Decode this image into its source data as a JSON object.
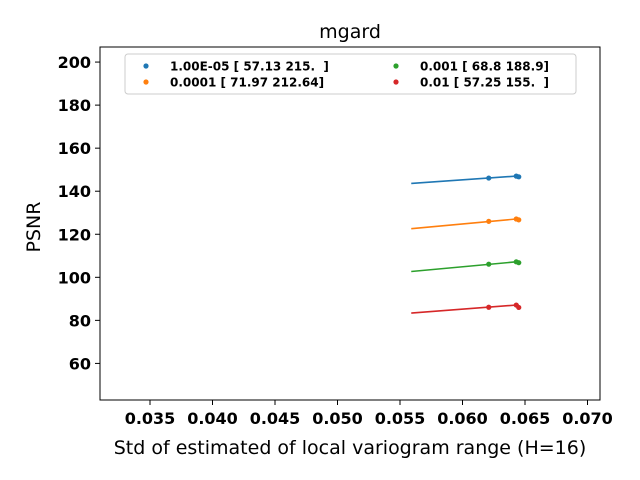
{
  "chart_data": {
    "type": "scatter",
    "title": "mgard",
    "xlabel": "Std of estimated of local variogram range (H=16)",
    "ylabel": "PSNR",
    "xlim": [
      0.031,
      0.071
    ],
    "ylim": [
      43,
      207
    ],
    "xticks": [
      0.035,
      0.04,
      0.045,
      0.05,
      0.055,
      0.06,
      0.065,
      0.07
    ],
    "xtick_labels": [
      "0.035",
      "0.040",
      "0.045",
      "0.050",
      "0.055",
      "0.060",
      "0.065",
      "0.070"
    ],
    "yticks": [
      60,
      80,
      100,
      120,
      140,
      160,
      180,
      200
    ],
    "ytick_labels": [
      "60",
      "80",
      "100",
      "120",
      "140",
      "160",
      "180",
      "200"
    ],
    "grid": false,
    "legend_position": "top",
    "series": [
      {
        "name": "1.00E-05 [ 57.13 215.  ]",
        "color": "#1f77b4",
        "points": [
          {
            "x": 0.0621,
            "y": 146.1
          },
          {
            "x": 0.0643,
            "y": 147.0
          },
          {
            "x": 0.0645,
            "y": 146.7
          }
        ],
        "fit": [
          {
            "x": 0.0559,
            "y": 143.6
          },
          {
            "x": 0.0645,
            "y": 147.1
          }
        ]
      },
      {
        "name": "0.0001 [ 71.97 212.64]",
        "color": "#ff7f0e",
        "points": [
          {
            "x": 0.0621,
            "y": 126.0
          },
          {
            "x": 0.0643,
            "y": 127.1
          },
          {
            "x": 0.0645,
            "y": 126.7
          }
        ],
        "fit": [
          {
            "x": 0.0559,
            "y": 122.6
          },
          {
            "x": 0.0645,
            "y": 127.2
          }
        ]
      },
      {
        "name": "0.001 [ 68.8 188.9]",
        "color": "#2ca02c",
        "points": [
          {
            "x": 0.0621,
            "y": 106.1
          },
          {
            "x": 0.0643,
            "y": 107.2
          },
          {
            "x": 0.0645,
            "y": 106.8
          }
        ],
        "fit": [
          {
            "x": 0.0559,
            "y": 102.7
          },
          {
            "x": 0.0645,
            "y": 107.3
          }
        ]
      },
      {
        "name": "0.01 [ 57.25 155.  ]",
        "color": "#d62728",
        "points": [
          {
            "x": 0.0621,
            "y": 86.1
          },
          {
            "x": 0.0643,
            "y": 87.1
          },
          {
            "x": 0.0645,
            "y": 86.0
          }
        ],
        "fit": [
          {
            "x": 0.0559,
            "y": 83.4
          },
          {
            "x": 0.0645,
            "y": 87.2
          }
        ]
      }
    ]
  }
}
